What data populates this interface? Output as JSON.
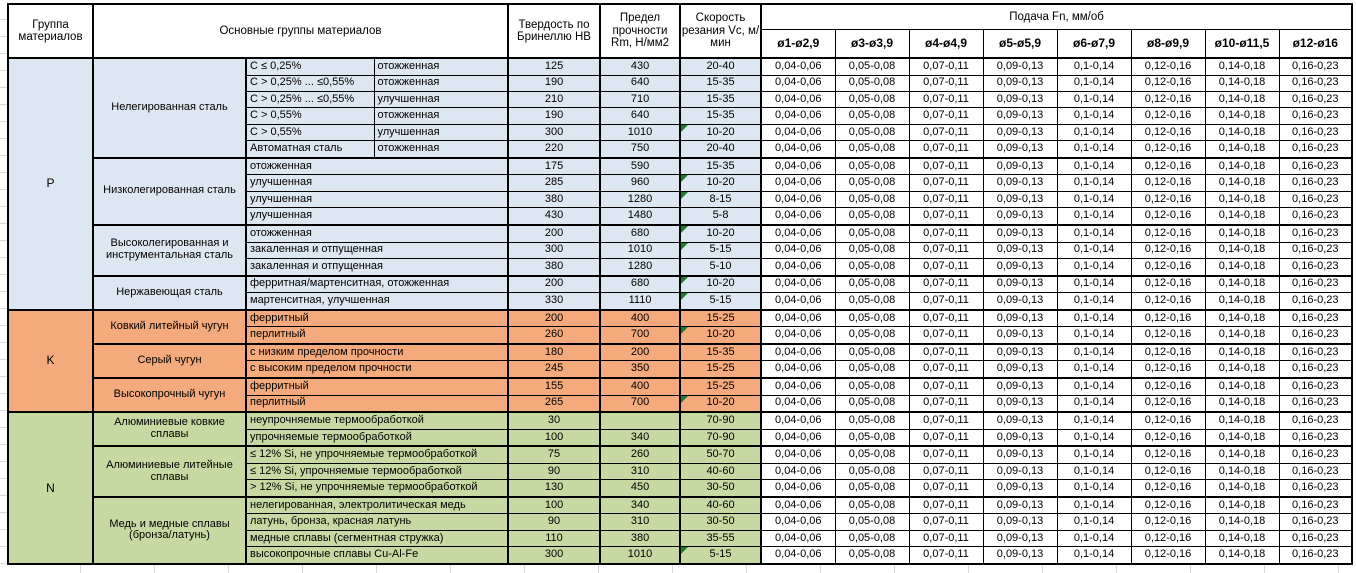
{
  "header": {
    "col_group": "Группа материалов",
    "col_main_groups": "Основные группы материалов",
    "col_hardness": "Твердость по Бринеллю НВ",
    "col_strength": "Предел прочности Rm, Н/мм2",
    "col_speed": "Скорость резания Vc, м/мин",
    "feed_title": "Подача Fn, мм/об",
    "feed_cols": [
      "ø1-ø2,9",
      "ø3-ø3,9",
      "ø4-ø4,9",
      "ø5-ø5,9",
      "ø6-ø7,9",
      "ø8-ø9,9",
      "ø10-ø11,5",
      "ø12-ø16"
    ]
  },
  "feed_values": [
    "0,04-0,06",
    "0,05-0,08",
    "0,07-0,11",
    "0,09-0,13",
    "0,1-0,14",
    "0,12-0,16",
    "0,14-0,18",
    "0,16-0,23"
  ],
  "colors": {
    "p_blue": "#DDE7F1",
    "k_orange": "#F4AA7C",
    "n_green": "#C6D9A3",
    "marker_green": "#1F7A2E",
    "border": "#000000",
    "gridline": "#D9D9D9"
  },
  "groups": [
    {
      "letter": "P",
      "color_key": "p_blue",
      "subgroups": [
        {
          "name": "Нелегированная сталь",
          "rows": [
            {
              "b": "C ≤ 0,25%",
              "c": "отожженная",
              "hb": "125",
              "rm": "430",
              "vc": "20-40",
              "tri": false
            },
            {
              "b": "C > 0,25% ... ≤0,55%",
              "c": "отожженная",
              "hb": "190",
              "rm": "640",
              "vc": "15-35",
              "tri": false
            },
            {
              "b": "C > 0,25% ... ≤0,55%",
              "c": "улучшенная",
              "hb": "210",
              "rm": "710",
              "vc": "15-35",
              "tri": false
            },
            {
              "b": "C > 0,55%",
              "c": "отожженная",
              "hb": "190",
              "rm": "640",
              "vc": "15-35",
              "tri": false
            },
            {
              "b": "C > 0,55%",
              "c": "улучшенная",
              "hb": "300",
              "rm": "1010",
              "vc": "10-20",
              "tri": true
            },
            {
              "b": "Автоматная сталь",
              "c": "отожженная",
              "hb": "220",
              "rm": "750",
              "vc": "20-40",
              "tri": false
            }
          ]
        },
        {
          "name": "Низколегированная сталь",
          "rows": [
            {
              "desc": "отожженная",
              "hb": "175",
              "rm": "590",
              "vc": "15-35",
              "tri": false
            },
            {
              "desc": "улучшенная",
              "hb": "285",
              "rm": "960",
              "vc": "10-20",
              "tri": true
            },
            {
              "desc": "улучшенная",
              "hb": "380",
              "rm": "1280",
              "vc": "8-15",
              "tri": true
            },
            {
              "desc": "улучшенная",
              "hb": "430",
              "rm": "1480",
              "vc": "5-8",
              "tri": false
            }
          ]
        },
        {
          "name": "Высоколегированная и инструментальная сталь",
          "rows": [
            {
              "desc": "отожженная",
              "hb": "200",
              "rm": "680",
              "vc": "10-20",
              "tri": true
            },
            {
              "desc": "закаленная и отпущенная",
              "hb": "300",
              "rm": "1010",
              "vc": "5-15",
              "tri": true
            },
            {
              "desc": "закаленная и отпущенная",
              "hb": "380",
              "rm": "1280",
              "vc": "5-10",
              "tri": false
            }
          ]
        },
        {
          "name": "Нержавеющая сталь",
          "rows": [
            {
              "desc": "ферритная/мартенситная, отожженная",
              "hb": "200",
              "rm": "680",
              "vc": "10-20",
              "tri": true
            },
            {
              "desc": "мартенситная, улучшенная",
              "hb": "330",
              "rm": "1110",
              "vc": "5-15",
              "tri": true
            }
          ]
        }
      ]
    },
    {
      "letter": "K",
      "color_key": "k_orange",
      "subgroups": [
        {
          "name": "Ковкий литейный чугун",
          "rows": [
            {
              "desc": "ферритный",
              "hb": "200",
              "rm": "400",
              "vc": "15-25",
              "tri": false
            },
            {
              "desc": "перлитный",
              "hb": "260",
              "rm": "700",
              "vc": "10-20",
              "tri": true
            }
          ]
        },
        {
          "name": "Серый чугун",
          "rows": [
            {
              "desc": "с низким пределом прочности",
              "hb": "180",
              "rm": "200",
              "vc": "15-35",
              "tri": false
            },
            {
              "desc": "с высоким пределом прочности",
              "hb": "245",
              "rm": "350",
              "vc": "15-25",
              "tri": false
            }
          ]
        },
        {
          "name": "Высокопрочный чугун",
          "rows": [
            {
              "desc": "ферритный",
              "hb": "155",
              "rm": "400",
              "vc": "15-25",
              "tri": false
            },
            {
              "desc": "перлитный",
              "hb": "265",
              "rm": "700",
              "vc": "10-20",
              "tri": true
            }
          ]
        }
      ]
    },
    {
      "letter": "N",
      "color_key": "n_green",
      "subgroups": [
        {
          "name": "Алюминиевые ковкие сплавы",
          "rows": [
            {
              "desc": "неупрочняемые термообработкой",
              "hb": "30",
              "rm": "",
              "vc": "70-90",
              "tri": false
            },
            {
              "desc": "упрочняемые термообработкой",
              "hb": "100",
              "rm": "340",
              "vc": "70-90",
              "tri": false
            }
          ]
        },
        {
          "name": "Алюминиевые литейные сплавы",
          "rows": [
            {
              "desc": "≤ 12% Si, не упрочняемые термообработкой",
              "hb": "75",
              "rm": "260",
              "vc": "50-70",
              "tri": false
            },
            {
              "desc": "≤ 12% Si, упрочняемые термообработкой",
              "hb": "90",
              "rm": "310",
              "vc": "40-60",
              "tri": false
            },
            {
              "desc": "> 12% Si, не упрочняемые термообработкой",
              "hb": "130",
              "rm": "450",
              "vc": "30-50",
              "tri": false
            }
          ]
        },
        {
          "name": "Медь и медные сплавы (бронза/латунь)",
          "rows": [
            {
              "desc": "нелегированная, электролитическая медь",
              "hb": "100",
              "rm": "340",
              "vc": "40-60",
              "tri": false
            },
            {
              "desc": "латунь, бронза, красная латунь",
              "hb": "90",
              "rm": "310",
              "vc": "30-50",
              "tri": false
            },
            {
              "desc": "медные сплавы (сегментная стружка)",
              "hb": "110",
              "rm": "380",
              "vc": "35-55",
              "tri": false
            },
            {
              "desc": "высокопрочные сплавы Cu-Al-Fe",
              "hb": "300",
              "rm": "1010",
              "vc": "5-15",
              "tri": true
            }
          ]
        }
      ]
    }
  ]
}
